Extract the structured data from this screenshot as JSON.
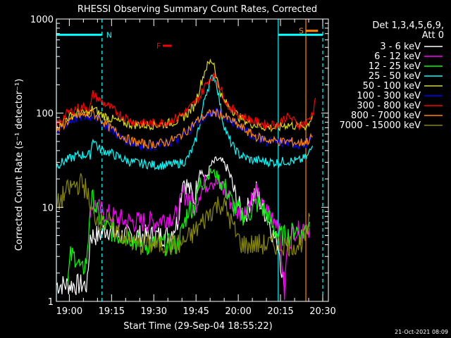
{
  "chart_data": {
    "type": "line",
    "title": "RHESSI Observing Summary Count Rates, Corrected",
    "xlabel": "Start Time (29-Sep-04 18:55:22)",
    "ylabel": "Corrected Count Rate (s⁻¹ detector⁻¹)",
    "x_unit": "minutes after 18:55:22",
    "xlim": [
      0,
      96.6
    ],
    "ylim": [
      1,
      1000
    ],
    "ylog": true,
    "y_ticks": [
      {
        "label": "1",
        "value": 1
      },
      {
        "label": "10",
        "value": 10
      },
      {
        "label": "100",
        "value": 100
      },
      {
        "label": "1000",
        "value": 1000
      }
    ],
    "x_ticks": [
      {
        "label": "19:00",
        "value": 4.6
      },
      {
        "label": "19:15",
        "value": 19.6
      },
      {
        "label": "19:30",
        "value": 34.6
      },
      {
        "label": "19:45",
        "value": 49.6
      },
      {
        "label": "20:00",
        "value": 64.6
      },
      {
        "label": "20:15",
        "value": 79.6
      },
      {
        "label": "20:30",
        "value": 94.6
      }
    ],
    "legend_header": [
      "Det 1,3,4,5,6,9,",
      "Att 0"
    ],
    "legend_position": "right",
    "timestamp": "21-Oct-2021 08:09",
    "series": [
      {
        "name": "3 - 6 keV",
        "color": "#ffffff",
        "x": [
          0,
          11,
          12,
          15,
          18,
          22,
          26,
          30,
          35,
          40,
          43,
          45,
          47,
          49,
          51,
          53,
          55,
          57,
          59,
          61,
          63,
          65,
          67,
          69,
          71,
          73,
          75,
          77,
          79,
          81
        ],
        "y": [
          1.5,
          1.5,
          5,
          5,
          6,
          5,
          5,
          5,
          5,
          5,
          7,
          20,
          16,
          12,
          26,
          20,
          28,
          32,
          30,
          25,
          15,
          10,
          8,
          12,
          15,
          10,
          8,
          5,
          4,
          1.2
        ]
      },
      {
        "name": "6 - 12 keV",
        "color": "#ff00ff",
        "x": [
          12,
          13,
          16,
          20,
          25,
          30,
          35,
          40,
          43,
          45,
          47,
          49,
          51,
          53,
          55,
          57,
          59,
          61,
          63,
          65,
          67,
          69,
          71,
          73,
          75,
          77,
          79,
          81,
          82,
          85,
          87,
          88,
          90
        ],
        "y": [
          10,
          11,
          9,
          8,
          7,
          7,
          7,
          8,
          8,
          14,
          13,
          10,
          15,
          18,
          20,
          18,
          16,
          13,
          10,
          9,
          9,
          12,
          14,
          10,
          9,
          8,
          7,
          1.2,
          4,
          6,
          5,
          7,
          6
        ]
      },
      {
        "name": "12 - 25 keV",
        "color": "#00ff00",
        "x": [
          4,
          5,
          7,
          9,
          11,
          12,
          13,
          15,
          18,
          22,
          26,
          30,
          35,
          40,
          43,
          45,
          47,
          49,
          51,
          53,
          55,
          57,
          59,
          61,
          63,
          65,
          67,
          69,
          71,
          73,
          75,
          77,
          79,
          81,
          83,
          85,
          87,
          90
        ],
        "y": [
          1.5,
          3,
          3,
          2,
          3,
          11,
          12,
          8,
          6,
          5,
          5,
          4,
          4,
          4,
          4,
          6,
          10,
          10,
          18,
          20,
          24,
          22,
          18,
          14,
          10,
          9,
          8,
          9,
          11,
          10,
          8,
          6,
          5,
          5,
          5,
          6,
          5,
          7
        ]
      },
      {
        "name": "25 - 50 keV",
        "color": "#00ffff",
        "x": [
          0,
          4,
          8,
          12,
          13,
          15,
          19,
          23,
          27,
          31,
          35,
          39,
          43,
          46,
          49,
          51,
          53,
          55,
          56,
          57,
          59,
          61,
          63,
          65,
          69,
          73,
          77,
          79,
          81,
          83,
          86,
          89,
          91
        ],
        "y": [
          28,
          32,
          36,
          36,
          55,
          42,
          38,
          33,
          30,
          29,
          28,
          28,
          29,
          31,
          45,
          80,
          160,
          230,
          250,
          200,
          85,
          55,
          43,
          36,
          32,
          31,
          30,
          30,
          31,
          31,
          31,
          34,
          45
        ]
      },
      {
        "name": "50 - 100 keV",
        "color": "#dddd00",
        "x": [
          0,
          4,
          8,
          12,
          13,
          15,
          19,
          23,
          27,
          31,
          35,
          39,
          43,
          46,
          49,
          51,
          53,
          55,
          56,
          57,
          59,
          61,
          63,
          65,
          69,
          73,
          77,
          79,
          81,
          83,
          86,
          89,
          91
        ],
        "y": [
          70,
          90,
          100,
          100,
          115,
          100,
          88,
          80,
          76,
          75,
          75,
          77,
          83,
          95,
          120,
          190,
          300,
          360,
          340,
          230,
          140,
          120,
          105,
          90,
          78,
          72,
          70,
          70,
          75,
          75,
          72,
          73,
          95
        ]
      },
      {
        "name": "100 - 300 keV",
        "color": "#0000ff",
        "x": [
          0,
          4,
          8,
          12,
          13,
          15,
          19,
          23,
          27,
          31,
          35,
          39,
          43,
          47,
          51,
          55,
          57,
          59,
          63,
          67,
          71,
          75,
          79,
          81,
          83,
          86,
          89,
          91
        ],
        "y": [
          62,
          80,
          90,
          90,
          96,
          85,
          68,
          55,
          48,
          45,
          45,
          47,
          52,
          65,
          85,
          100,
          100,
          96,
          80,
          65,
          55,
          50,
          48,
          48,
          48,
          46,
          48,
          55
        ]
      },
      {
        "name": "300 - 800 keV",
        "color": "#ff0000",
        "x": [
          0,
          4,
          8,
          12,
          13,
          15,
          19,
          23,
          27,
          31,
          35,
          39,
          43,
          47,
          51,
          53,
          55,
          56,
          57,
          59,
          61,
          63,
          67,
          71,
          75,
          79,
          81,
          83,
          86,
          89,
          91,
          92
        ],
        "y": [
          75,
          100,
          115,
          115,
          160,
          140,
          115,
          95,
          82,
          78,
          78,
          80,
          90,
          110,
          150,
          200,
          245,
          240,
          220,
          160,
          120,
          105,
          90,
          80,
          75,
          76,
          90,
          90,
          75,
          80,
          100,
          145
        ]
      },
      {
        "name": "800 - 7000 keV",
        "color": "#ff8800",
        "x": [
          0,
          4,
          8,
          12,
          13,
          15,
          19,
          23,
          27,
          31,
          35,
          39,
          43,
          47,
          51,
          55,
          57,
          59,
          63,
          67,
          71,
          75,
          79,
          81,
          83,
          86,
          89,
          91
        ],
        "y": [
          65,
          82,
          95,
          95,
          100,
          90,
          70,
          58,
          50,
          47,
          47,
          49,
          55,
          68,
          88,
          100,
          100,
          95,
          80,
          66,
          56,
          52,
          50,
          50,
          50,
          48,
          50,
          56
        ]
      },
      {
        "name": "7000 - 15000 keV",
        "color": "#888800",
        "x": [
          0,
          3,
          6,
          9,
          11,
          12,
          14,
          16,
          18,
          20,
          24,
          28,
          32,
          36,
          40,
          44,
          48,
          52,
          56,
          58,
          60,
          62,
          64,
          66,
          70,
          74,
          78,
          80,
          81,
          83,
          86,
          89,
          90
        ],
        "y": [
          10,
          14,
          17,
          18,
          15,
          9,
          8,
          7,
          7,
          6,
          5,
          4,
          4,
          4,
          4,
          4,
          5,
          7,
          10,
          11,
          10,
          7,
          5,
          4,
          4,
          4,
          4,
          4,
          4,
          4,
          4,
          5,
          8
        ]
      }
    ],
    "annotations": [
      {
        "label": "N",
        "color": "#00ffff",
        "lines_x": [
          0,
          16.2
        ],
        "bar_x": [
          0,
          16.2
        ],
        "bar_y": 680
      },
      {
        "label": "S",
        "color": "#ff8800",
        "lines_x": [
          88.6
        ],
        "bar_x": [
          88.6,
          92.9
        ],
        "bar_y": 750
      },
      {
        "label": "F",
        "color": "#ff0000",
        "bar_x": [
          37.8,
          40.8
        ],
        "bar_y": 520
      }
    ],
    "vertical_markers": [
      {
        "color": "#00ffff",
        "x": 78.8,
        "style": "solid"
      },
      {
        "color": "#00ffff",
        "x": 94.6,
        "style": "dashed"
      },
      {
        "color": "#00ffff",
        "bar_x": [
          78.8,
          94.6
        ],
        "bar_y": 680
      }
    ]
  }
}
